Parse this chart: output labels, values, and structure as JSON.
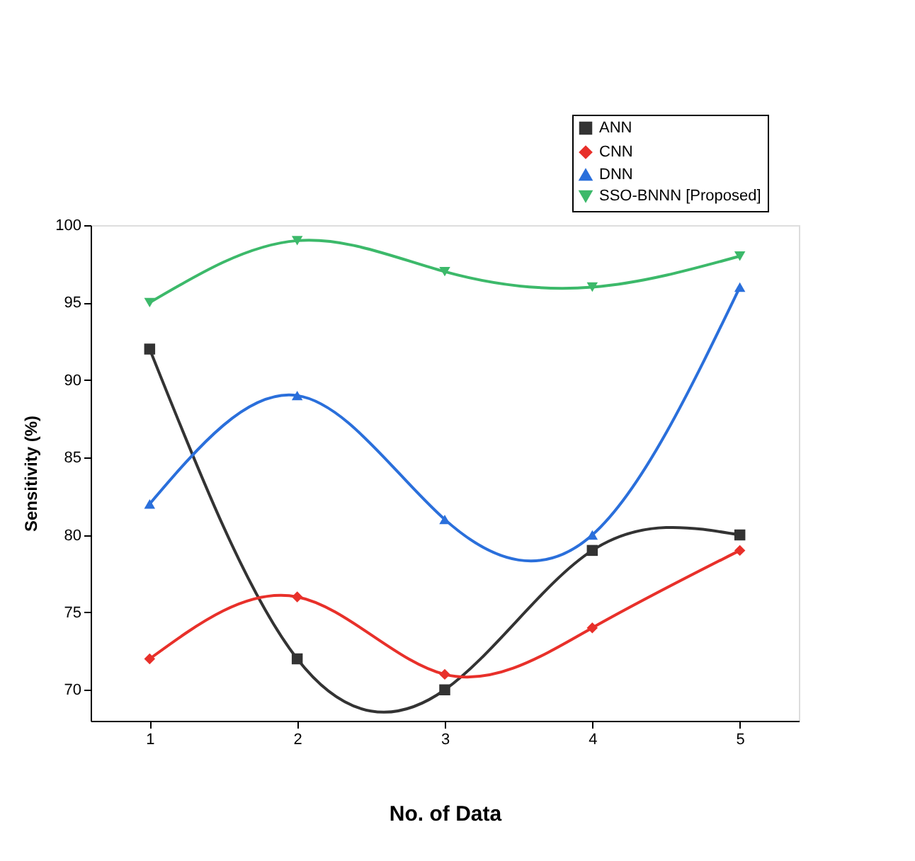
{
  "chart_data": {
    "type": "line",
    "xlabel": "No. of Data",
    "ylabel": "Sensitivity (%)",
    "x": [
      1,
      2,
      3,
      4,
      5
    ],
    "xlim": [
      0.6,
      5.4
    ],
    "xticks": [
      1,
      2,
      3,
      4,
      5
    ],
    "ylim": [
      68,
      100
    ],
    "yticks": [
      70,
      75,
      80,
      85,
      90,
      95,
      100
    ],
    "grid": false,
    "legend": "top right",
    "line_style": "solid",
    "series": [
      {
        "name": "ANN",
        "color": "#333333",
        "marker": "square",
        "values": [
          92,
          72,
          70,
          79,
          80
        ]
      },
      {
        "name": "CNN",
        "color": "#e8302a",
        "marker": "diamond",
        "values": [
          72,
          76,
          71,
          74,
          79
        ]
      },
      {
        "name": "DNN",
        "color": "#2a6fdb",
        "marker": "triangle",
        "values": [
          82,
          89,
          81,
          80,
          96
        ]
      },
      {
        "name": "SSO-BNNN [Proposed]",
        "color": "#3cb96a",
        "marker": "triangle-down",
        "values": [
          95,
          99,
          97,
          96,
          98
        ]
      }
    ]
  }
}
